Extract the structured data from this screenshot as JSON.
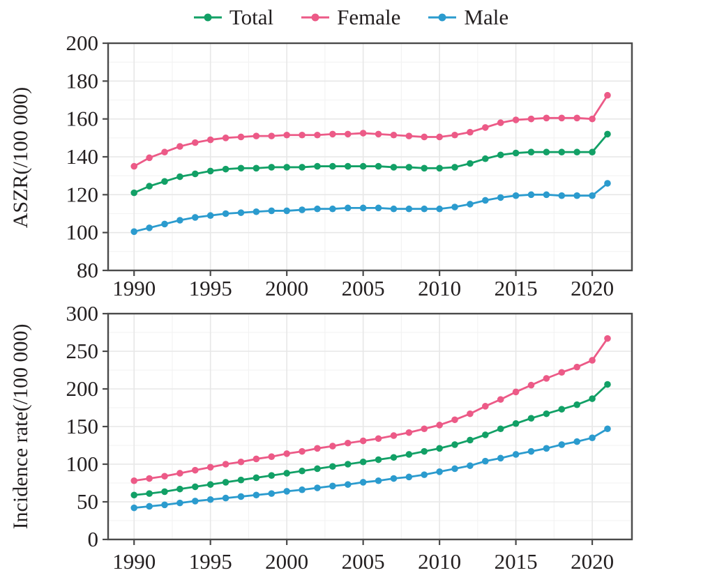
{
  "figure": {
    "background": "#ffffff",
    "text_color": "#231f20",
    "grid_major_color": "#e7e7e7",
    "grid_minor_color": "#f3f3f3",
    "border_color": "#4a4a4a"
  },
  "legend": {
    "items": [
      {
        "label": "Total",
        "color": "#12a066"
      },
      {
        "label": "Female",
        "color": "#ec5a87"
      },
      {
        "label": "Male",
        "color": "#2b9bce"
      }
    ]
  },
  "chart_data": [
    {
      "type": "line",
      "title": "",
      "xlabel": "",
      "ylabel": "ASZR(/100 000)",
      "grid": true,
      "legend_position": "top",
      "xlim": [
        1988.3,
        2022.6
      ],
      "ylim": [
        80,
        200
      ],
      "x_ticks": [
        1990,
        1995,
        2000,
        2005,
        2010,
        2015,
        2020
      ],
      "y_ticks": [
        80,
        100,
        120,
        140,
        160,
        180,
        200
      ],
      "x": [
        1990,
        1991,
        1992,
        1993,
        1994,
        1995,
        1996,
        1997,
        1998,
        1999,
        2000,
        2001,
        2002,
        2003,
        2004,
        2005,
        2006,
        2007,
        2008,
        2009,
        2010,
        2011,
        2012,
        2013,
        2014,
        2015,
        2016,
        2017,
        2018,
        2019,
        2020,
        2021
      ],
      "series": [
        {
          "name": "Total",
          "color": "#12a066",
          "values": [
            121,
            124.5,
            127,
            129.5,
            131,
            132.5,
            133.5,
            134,
            134,
            134.5,
            134.5,
            134.5,
            135,
            135,
            135,
            135,
            135,
            134.5,
            134.5,
            134,
            134,
            134.5,
            136.5,
            139,
            141,
            142,
            142.5,
            142.5,
            142.5,
            142.5,
            142.5,
            152
          ]
        },
        {
          "name": "Female",
          "color": "#ec5a87",
          "values": [
            135,
            139.5,
            142.5,
            145.5,
            147.5,
            149,
            150,
            150.5,
            151,
            151,
            151.5,
            151.5,
            151.5,
            152,
            152,
            152.5,
            152,
            151.5,
            151,
            150.5,
            150.5,
            151.5,
            153,
            155.5,
            158,
            159.5,
            160,
            160.5,
            160.5,
            160.5,
            160,
            172.5
          ]
        },
        {
          "name": "Male",
          "color": "#2b9bce",
          "values": [
            100.5,
            102.5,
            104.5,
            106.5,
            108,
            109,
            110,
            110.5,
            111,
            111.5,
            111.5,
            112,
            112.5,
            112.5,
            113,
            113,
            113,
            112.5,
            112.5,
            112.5,
            112.5,
            113.5,
            115,
            117,
            118.5,
            119.5,
            120,
            120,
            119.5,
            119.5,
            119.5,
            126
          ]
        }
      ]
    },
    {
      "type": "line",
      "title": "",
      "xlabel": "",
      "ylabel": "Incidence rate(/100 000)",
      "grid": true,
      "legend_position": "top",
      "xlim": [
        1988.3,
        2022.6
      ],
      "ylim": [
        0,
        300
      ],
      "x_ticks": [
        1990,
        1995,
        2000,
        2005,
        2010,
        2015,
        2020
      ],
      "y_ticks": [
        0,
        50,
        100,
        150,
        200,
        250,
        300
      ],
      "x": [
        1990,
        1991,
        1992,
        1993,
        1994,
        1995,
        1996,
        1997,
        1998,
        1999,
        2000,
        2001,
        2002,
        2003,
        2004,
        2005,
        2006,
        2007,
        2008,
        2009,
        2010,
        2011,
        2012,
        2013,
        2014,
        2015,
        2016,
        2017,
        2018,
        2019,
        2020,
        2021
      ],
      "series": [
        {
          "name": "Total",
          "color": "#12a066",
          "values": [
            59,
            61,
            63.5,
            67,
            70,
            73,
            76,
            79,
            82,
            85,
            88,
            91,
            94,
            97,
            100,
            103,
            106,
            109,
            113,
            117,
            121,
            126,
            132,
            139,
            147,
            154,
            161,
            167,
            173,
            179,
            187,
            206
          ]
        },
        {
          "name": "Female",
          "color": "#ec5a87",
          "values": [
            78,
            81,
            84,
            88,
            92,
            96,
            100,
            103,
            107,
            110,
            114,
            117,
            121,
            124,
            128,
            131,
            134,
            138,
            142,
            147,
            152,
            159,
            167,
            177,
            186,
            196,
            205,
            214,
            222,
            229,
            238,
            267
          ]
        },
        {
          "name": "Male",
          "color": "#2b9bce",
          "values": [
            42,
            44,
            46,
            48.5,
            51,
            53,
            55,
            57,
            59,
            61,
            64,
            66,
            68.5,
            71,
            73,
            76,
            78,
            81,
            83,
            86,
            90,
            94,
            98,
            104,
            108,
            113,
            117,
            121,
            126,
            130,
            135,
            147
          ]
        }
      ]
    }
  ]
}
